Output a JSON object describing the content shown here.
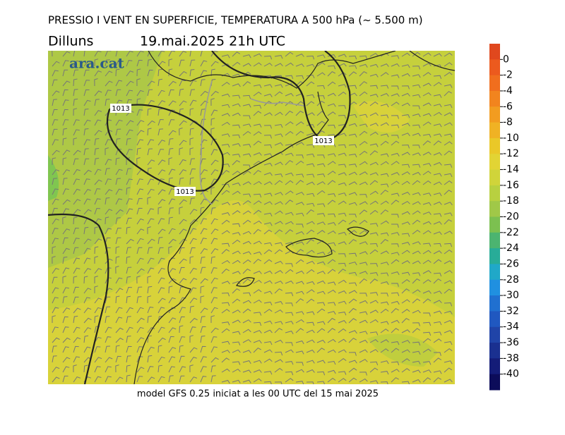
{
  "title": "PRESSIO I VENT EN SUPERFICIE, TEMPERATURA A 500 hPa (~ 5.500 m)",
  "day": "Dilluns",
  "datetime": "19.mai.2025 21h UTC",
  "logo": "ara.cat",
  "footer": "model GFS 0.25 iniciat a les 00 UTC del 15 mai 2025",
  "isobar_labels": [
    "1013",
    "1013",
    "1013"
  ],
  "colorbar": {
    "ticks": [
      0,
      -2,
      -4,
      -6,
      -8,
      -10,
      -12,
      -14,
      -16,
      -18,
      -20,
      -22,
      -24,
      -26,
      -28,
      -30,
      -32,
      -34,
      -36,
      -38,
      -40
    ],
    "colors": [
      "#e0481e",
      "#ec5a1e",
      "#f06e1e",
      "#f2841e",
      "#f29c20",
      "#f0b224",
      "#eac828",
      "#e2d434",
      "#d0d43a",
      "#b8d040",
      "#a0c848",
      "#7cc050",
      "#4cb470",
      "#28ac98",
      "#20a8c8",
      "#2090e0",
      "#2070d0",
      "#2058c0",
      "#2044a8",
      "#1a3090",
      "#141c78",
      "#0c0c5a"
    ]
  }
}
